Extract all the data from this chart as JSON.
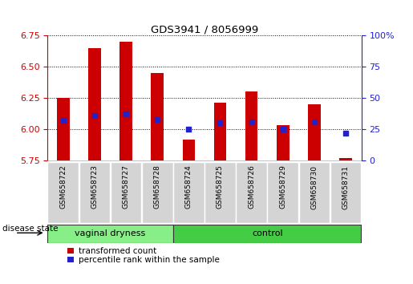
{
  "title": "GDS3941 / 8056999",
  "samples": [
    "GSM658722",
    "GSM658723",
    "GSM658727",
    "GSM658728",
    "GSM658724",
    "GSM658725",
    "GSM658726",
    "GSM658729",
    "GSM658730",
    "GSM658731"
  ],
  "groups": [
    "vaginal dryness",
    "vaginal dryness",
    "vaginal dryness",
    "vaginal dryness",
    "control",
    "control",
    "control",
    "control",
    "control",
    "control"
  ],
  "bar_bottom": 5.75,
  "bar_top": [
    6.25,
    6.65,
    6.7,
    6.45,
    5.92,
    6.21,
    6.3,
    6.03,
    6.2,
    5.77
  ],
  "percentile": [
    32,
    36,
    37,
    33,
    25,
    30,
    31,
    25,
    31,
    22
  ],
  "ylim_left": [
    5.75,
    6.75
  ],
  "ylim_right": [
    0,
    100
  ],
  "yticks_left": [
    5.75,
    6.0,
    6.25,
    6.5,
    6.75
  ],
  "yticks_right": [
    0,
    25,
    50,
    75,
    100
  ],
  "ytick_labels_right": [
    "0",
    "25",
    "50",
    "75",
    "100%"
  ],
  "bar_color": "#cc0000",
  "percentile_color": "#2222cc",
  "vaginal_color": "#88ee88",
  "control_color": "#44cc44",
  "left_axis_color": "#cc0000",
  "right_axis_color": "#2222cc",
  "sample_bg_color": "#d4d4d4",
  "label_transformed": "transformed count",
  "label_percentile": "percentile rank within the sample",
  "disease_state_label": "disease state",
  "group1_label": "vaginal dryness",
  "group2_label": "control",
  "group1_count": 4,
  "group2_count": 6
}
